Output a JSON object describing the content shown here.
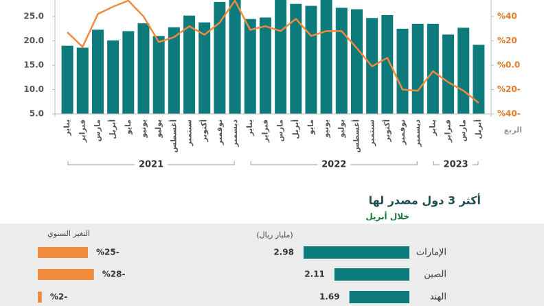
{
  "chart_data": [
    {
      "type": "bar-line",
      "xlabel": "الربع",
      "categories": [
        "يناير",
        "فبراير",
        "مارس",
        "أبريل",
        "مايو",
        "يونيو",
        "يوليو",
        "أغسطس",
        "سبتمبر",
        "أكتوبر",
        "نوفمبر",
        "ديسمبر",
        "يناير",
        "فبراير",
        "مارس",
        "أبريل",
        "مايو",
        "يونيو",
        "يوليو",
        "أغسطس",
        "سبتمبر",
        "أكتوبر",
        "نوفمبر",
        "ديسمبر",
        "يناير",
        "فبراير",
        "مارس",
        "أبريل"
      ],
      "years": [
        "2021",
        "2022",
        "2023"
      ],
      "series": [
        {
          "color": "#0d7a7c",
          "values": [
            19.0,
            18.6,
            22.3,
            20.1,
            22.0,
            23.6,
            21.0,
            22.8,
            25.2,
            23.8,
            28.0,
            28.4,
            24.5,
            24.8,
            28.4,
            27.6,
            27.2,
            28.4,
            26.8,
            26.5,
            24.7,
            25.3,
            22.5,
            23.5,
            23.5,
            21.3,
            22.7,
            19.2
          ]
        },
        {
          "color": "#f08a3c",
          "axis": "y2",
          "values": [
            27,
            15,
            42,
            48,
            53,
            40,
            19,
            23,
            32,
            25,
            35,
            53,
            29,
            32,
            28,
            38,
            24,
            28,
            28,
            14,
            -1,
            6,
            -20,
            -21,
            -5,
            -14,
            -21,
            -31
          ]
        }
      ],
      "ylim": [
        5,
        28.4
      ],
      "yticks": [
        {
          "value": 5,
          "label": "5.0"
        },
        {
          "value": 10,
          "label": "10.0"
        },
        {
          "value": 15,
          "label": "15.0"
        },
        {
          "value": 20,
          "label": "20.0"
        },
        {
          "value": 25,
          "label": "25.0"
        }
      ],
      "y2lim": [
        -40,
        53.5
      ],
      "y2ticks": [
        {
          "value": 40,
          "label": "%40"
        },
        {
          "value": 20,
          "label": "%20"
        },
        {
          "value": 0,
          "label": "%0.0"
        },
        {
          "value": -20,
          "label": "%20-"
        },
        {
          "value": -40,
          "label": "%40-"
        }
      ]
    },
    {
      "type": "hbar",
      "title": "أكثر 3 دول مصدر لها",
      "subtitle": "خلال أبريل",
      "categories": [
        "الإمارات",
        "الصين",
        "الهند"
      ],
      "series": [
        {
          "name": "(مليار ريال)",
          "color": "#0d7a7c",
          "values": [
            2.98,
            2.11,
            1.69
          ]
        },
        {
          "name": "التغير السنوي",
          "color": "#f08a3c",
          "values": [
            -25,
            -28,
            -2
          ],
          "value_labels": [
            "%25-",
            "%28-",
            "%2-"
          ]
        }
      ]
    }
  ]
}
